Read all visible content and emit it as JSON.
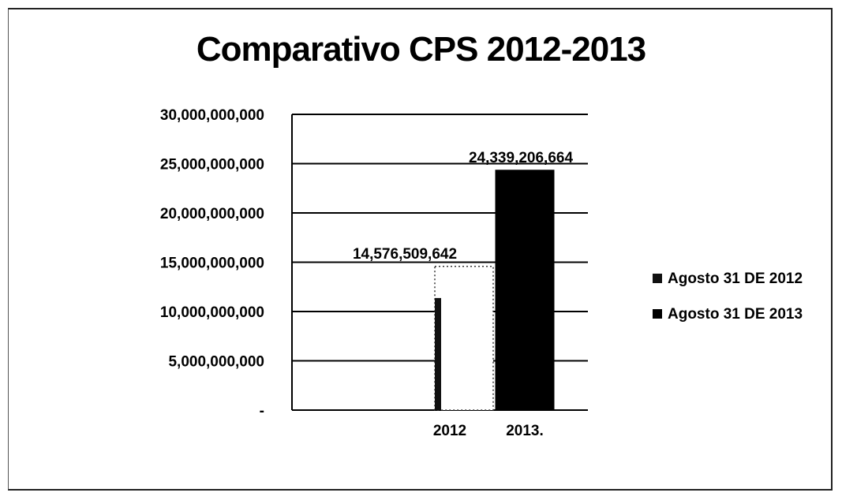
{
  "chart_data": {
    "type": "bar",
    "title": "Comparativo CPS 2012-2013",
    "categories": [
      "2012",
      "2013."
    ],
    "series": [
      {
        "name": "Agosto 31 DE 2012",
        "values": [
          14576509642,
          null
        ],
        "color": "#111111"
      },
      {
        "name": "Agosto 31 DE 2013",
        "values": [
          null,
          24339206664
        ],
        "color": "#000000"
      }
    ],
    "data_labels": [
      "14,576,509,642",
      "24,339,206,664"
    ],
    "y_ticks": [
      {
        "value": 0,
        "label": "-"
      },
      {
        "value": 5000000000,
        "label": "5,000,000,000"
      },
      {
        "value": 10000000000,
        "label": "10,000,000,000"
      },
      {
        "value": 15000000000,
        "label": "15,000,000,000"
      },
      {
        "value": 20000000000,
        "label": "20,000,000,000"
      },
      {
        "value": 25000000000,
        "label": "25,000,000,000"
      },
      {
        "value": 30000000000,
        "label": "30,000,000,000"
      }
    ],
    "ylim": [
      0,
      30000000000
    ],
    "grid": true,
    "legend": "right",
    "xlabel": "",
    "ylabel": ""
  }
}
